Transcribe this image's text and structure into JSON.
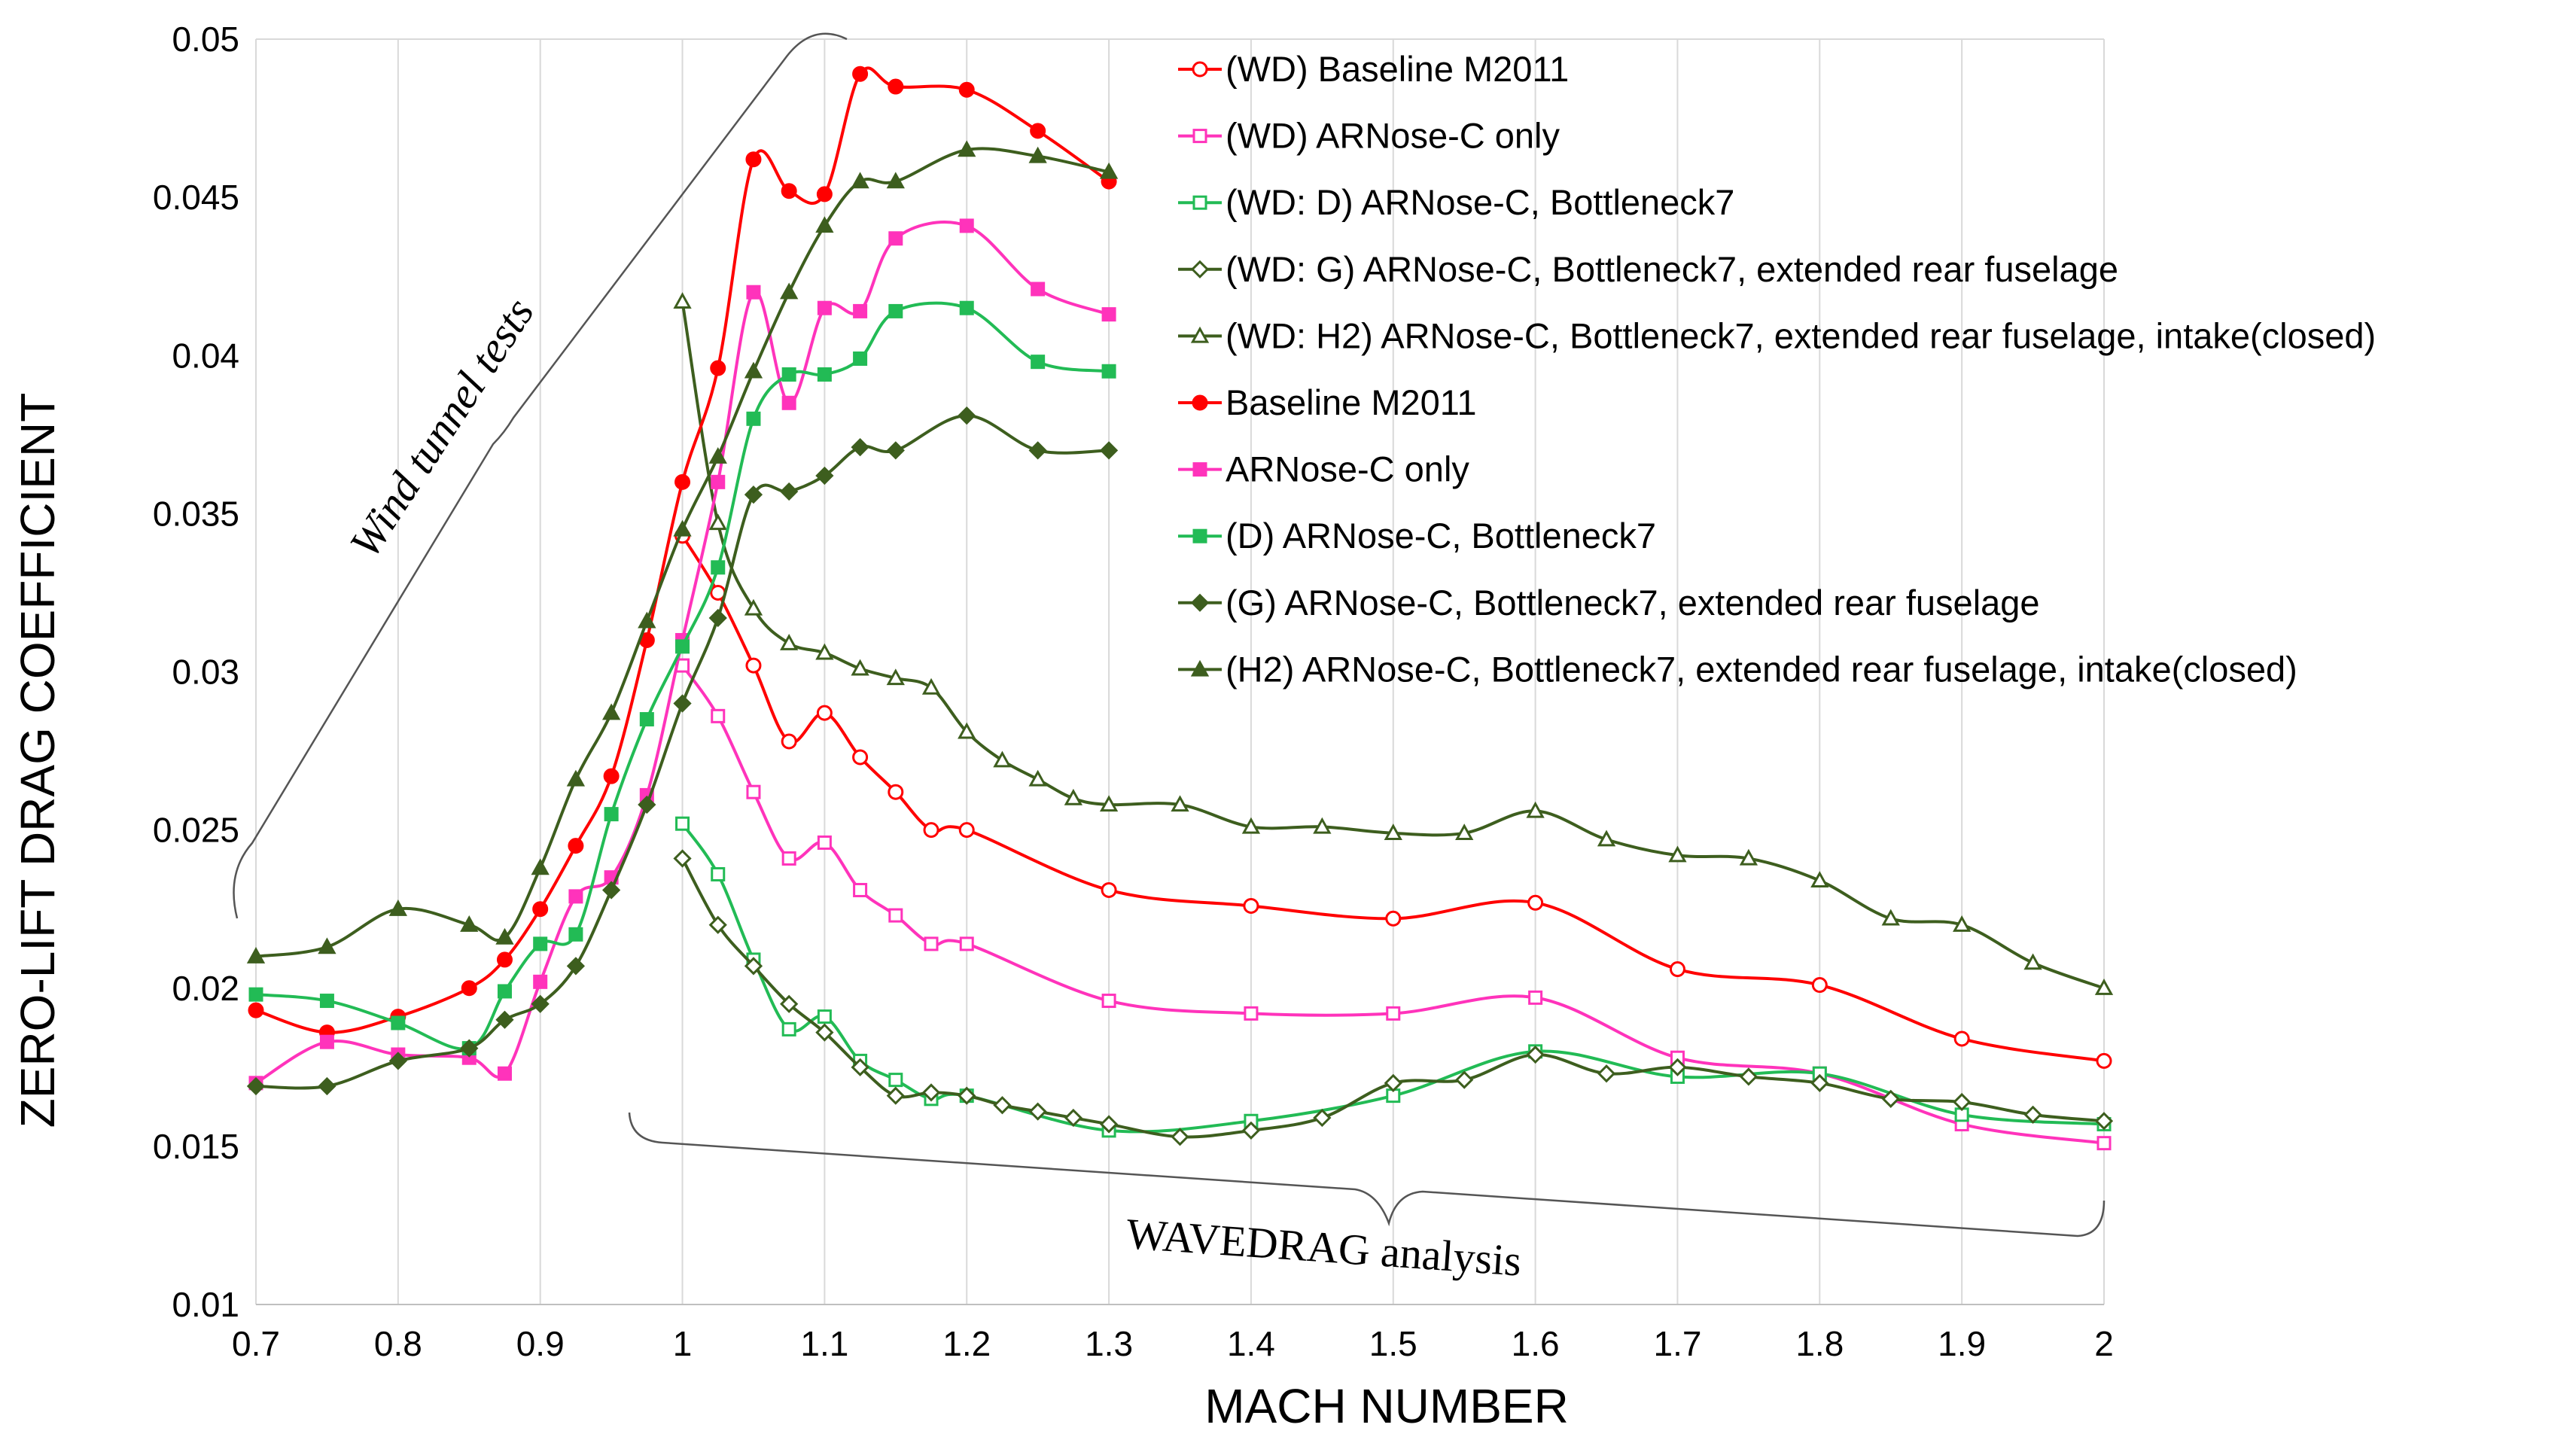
{
  "chart_data": {
    "type": "line",
    "title": "",
    "xlabel": "MACH NUMBER",
    "ylabel": "ZERO-LIFT DRAG COEFFICIENT",
    "xlim": [
      0.7,
      2.0
    ],
    "ylim": [
      0.01,
      0.05
    ],
    "x_ticks": [
      "0.7",
      "0.8",
      "0.9",
      "1",
      "1.1",
      "1.2",
      "1.3",
      "1.4",
      "1.5",
      "1.6",
      "1.7",
      "1.8",
      "1.9",
      "2"
    ],
    "y_ticks": [
      "0.01",
      "0.015",
      "0.02",
      "0.025",
      "0.03",
      "0.035",
      "0.04",
      "0.045",
      "0.05"
    ],
    "grid": "vertical",
    "legend_position": "top-right",
    "annotations": {
      "wind_tunnel": "Wind tunnel tests",
      "wavedrag": "WAVEDRAG analysis"
    },
    "series": [
      {
        "name": "(WD) Baseline M2011",
        "color": "#ff0000",
        "marker": "circle",
        "filled": false,
        "x": [
          1.0,
          1.025,
          1.05,
          1.075,
          1.1,
          1.125,
          1.15,
          1.175,
          1.2,
          1.3,
          1.4,
          1.5,
          1.6,
          1.7,
          1.8,
          1.9,
          2.0
        ],
        "y": [
          0.0343,
          0.0325,
          0.0302,
          0.0278,
          0.0287,
          0.0273,
          0.0262,
          0.025,
          0.025,
          0.0231,
          0.0226,
          0.0222,
          0.0227,
          0.0206,
          0.0201,
          0.0184,
          0.0177
        ]
      },
      {
        "name": "(WD) ARNose-C only",
        "color": "#ff33bb",
        "marker": "square",
        "filled": false,
        "x": [
          1.0,
          1.025,
          1.05,
          1.075,
          1.1,
          1.125,
          1.15,
          1.175,
          1.2,
          1.3,
          1.4,
          1.5,
          1.6,
          1.7,
          1.8,
          1.9,
          2.0
        ],
        "y": [
          0.0302,
          0.0286,
          0.0262,
          0.0241,
          0.0246,
          0.0231,
          0.0223,
          0.0214,
          0.0214,
          0.0196,
          0.0192,
          0.0192,
          0.0197,
          0.0178,
          0.0173,
          0.0157,
          0.0151
        ]
      },
      {
        "name": "(WD: D) ARNose-C, Bottleneck7",
        "color": "#22bb55",
        "marker": "square",
        "filled": false,
        "x": [
          1.0,
          1.025,
          1.05,
          1.075,
          1.1,
          1.125,
          1.15,
          1.175,
          1.2,
          1.3,
          1.4,
          1.5,
          1.6,
          1.7,
          1.8,
          1.9,
          2.0
        ],
        "y": [
          0.0252,
          0.0236,
          0.0209,
          0.0187,
          0.0191,
          0.0177,
          0.0171,
          0.0165,
          0.0166,
          0.0155,
          0.0158,
          0.0166,
          0.018,
          0.0172,
          0.0173,
          0.016,
          0.0157
        ]
      },
      {
        "name": "(WD: G) ARNose-C, Bottleneck7, extended rear fuselage",
        "color": "#3d5e1e",
        "marker": "diamond",
        "filled": false,
        "x": [
          1.0,
          1.025,
          1.05,
          1.075,
          1.1,
          1.125,
          1.15,
          1.175,
          1.2,
          1.225,
          1.25,
          1.275,
          1.3,
          1.35,
          1.4,
          1.45,
          1.5,
          1.55,
          1.6,
          1.65,
          1.7,
          1.75,
          1.8,
          1.85,
          1.9,
          1.95,
          2.0
        ],
        "y": [
          0.0241,
          0.022,
          0.0207,
          0.0195,
          0.0186,
          0.0175,
          0.0166,
          0.0167,
          0.0166,
          0.0163,
          0.0161,
          0.0159,
          0.0157,
          0.0153,
          0.0155,
          0.0159,
          0.017,
          0.0171,
          0.0179,
          0.0173,
          0.0175,
          0.0172,
          0.017,
          0.0165,
          0.0164,
          0.016,
          0.0158
        ]
      },
      {
        "name": "(WD: H2) ARNose-C, Bottleneck7, extended rear fuselage, intake(closed)",
        "color": "#3d5e1e",
        "marker": "triangle",
        "filled": false,
        "x": [
          1.0,
          1.025,
          1.05,
          1.075,
          1.1,
          1.125,
          1.15,
          1.175,
          1.2,
          1.225,
          1.25,
          1.275,
          1.3,
          1.35,
          1.4,
          1.45,
          1.5,
          1.55,
          1.6,
          1.65,
          1.7,
          1.75,
          1.8,
          1.85,
          1.9,
          1.95,
          2.0
        ],
        "y": [
          0.0417,
          0.0347,
          0.032,
          0.0309,
          0.0306,
          0.0301,
          0.0298,
          0.0295,
          0.0281,
          0.0272,
          0.0266,
          0.026,
          0.0258,
          0.0258,
          0.0251,
          0.0251,
          0.0249,
          0.0249,
          0.0256,
          0.0247,
          0.0242,
          0.0241,
          0.0234,
          0.0222,
          0.022,
          0.0208,
          0.02
        ]
      },
      {
        "name": "Baseline M2011",
        "color": "#ff0000",
        "marker": "circle",
        "filled": true,
        "x": [
          0.7,
          0.75,
          0.8,
          0.85,
          0.875,
          0.9,
          0.925,
          0.95,
          0.975,
          1.0,
          1.025,
          1.05,
          1.075,
          1.1,
          1.125,
          1.15,
          1.2,
          1.25,
          1.3
        ],
        "y": [
          0.0193,
          0.0186,
          0.0191,
          0.02,
          0.0209,
          0.0225,
          0.0245,
          0.0267,
          0.031,
          0.036,
          0.0396,
          0.0462,
          0.0452,
          0.0451,
          0.0489,
          0.0485,
          0.0484,
          0.0471,
          0.0455
        ]
      },
      {
        "name": "ARNose-C only",
        "color": "#ff33bb",
        "marker": "square",
        "filled": true,
        "x": [
          0.7,
          0.75,
          0.8,
          0.85,
          0.875,
          0.9,
          0.925,
          0.95,
          0.975,
          1.0,
          1.025,
          1.05,
          1.075,
          1.1,
          1.125,
          1.15,
          1.2,
          1.25,
          1.3
        ],
        "y": [
          0.017,
          0.0183,
          0.0179,
          0.0178,
          0.0173,
          0.0202,
          0.0229,
          0.0235,
          0.0261,
          0.031,
          0.036,
          0.042,
          0.0385,
          0.0415,
          0.0414,
          0.0437,
          0.0441,
          0.0421,
          0.0413
        ]
      },
      {
        "name": "(D) ARNose-C, Bottleneck7",
        "color": "#22bb55",
        "marker": "square",
        "filled": true,
        "x": [
          0.7,
          0.75,
          0.8,
          0.85,
          0.875,
          0.9,
          0.925,
          0.95,
          0.975,
          1.0,
          1.025,
          1.05,
          1.075,
          1.1,
          1.125,
          1.15,
          1.2,
          1.25,
          1.3
        ],
        "y": [
          0.0198,
          0.0196,
          0.0189,
          0.0181,
          0.0199,
          0.0214,
          0.0217,
          0.0255,
          0.0285,
          0.0308,
          0.0333,
          0.038,
          0.0394,
          0.0394,
          0.0399,
          0.0414,
          0.0415,
          0.0398,
          0.0395
        ]
      },
      {
        "name": "(G) ARNose-C, Bottleneck7, extended rear fuselage",
        "color": "#3d5e1e",
        "marker": "diamond",
        "filled": true,
        "x": [
          0.7,
          0.75,
          0.8,
          0.85,
          0.875,
          0.9,
          0.925,
          0.95,
          0.975,
          1.0,
          1.025,
          1.05,
          1.075,
          1.1,
          1.125,
          1.15,
          1.2,
          1.25,
          1.3
        ],
        "y": [
          0.0169,
          0.0169,
          0.0177,
          0.0181,
          0.019,
          0.0195,
          0.0207,
          0.0231,
          0.0258,
          0.029,
          0.0317,
          0.0356,
          0.0357,
          0.0362,
          0.0371,
          0.037,
          0.0381,
          0.037,
          0.037
        ]
      },
      {
        "name": "(H2) ARNose-C, Bottleneck7, extended rear fuselage, intake(closed)",
        "color": "#3d5e1e",
        "marker": "triangle",
        "filled": true,
        "x": [
          0.7,
          0.75,
          0.8,
          0.85,
          0.875,
          0.9,
          0.925,
          0.95,
          0.975,
          1.0,
          1.025,
          1.05,
          1.075,
          1.1,
          1.125,
          1.15,
          1.2,
          1.25,
          1.3
        ],
        "y": [
          0.021,
          0.0213,
          0.0225,
          0.022,
          0.0216,
          0.0238,
          0.0266,
          0.0287,
          0.0316,
          0.0345,
          0.0368,
          0.0395,
          0.042,
          0.0441,
          0.0455,
          0.0455,
          0.0465,
          0.0463,
          0.0458
        ]
      }
    ]
  }
}
